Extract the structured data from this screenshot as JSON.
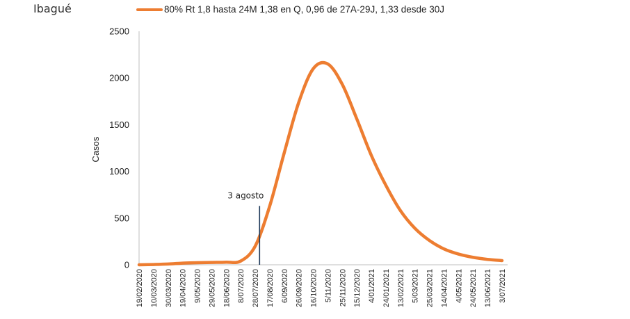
{
  "chart_data": {
    "type": "line",
    "title": "Ibagué",
    "xlabel": "",
    "ylabel": "Casos",
    "ylim": [
      0,
      2500
    ],
    "yticks": [
      0,
      500,
      1000,
      1500,
      2000,
      2500
    ],
    "grid": false,
    "legend_placement": "top",
    "categories": [
      "19/02/2020",
      "10/03/2020",
      "30/03/2020",
      "19/04/2020",
      "9/05/2020",
      "29/05/2020",
      "18/06/2020",
      "8/07/2020",
      "28/07/2020",
      "17/08/2020",
      "6/09/2020",
      "26/09/2020",
      "16/10/2020",
      "5/11/2020",
      "25/11/2020",
      "15/12/2020",
      "4/01/2021",
      "24/01/2021",
      "13/02/2021",
      "5/03/2021",
      "25/03/2021",
      "14/04/2021",
      "4/05/2021",
      "24/05/2021",
      "13/06/2021",
      "3/07/2021"
    ],
    "series": [
      {
        "name": "80% Rt 1,8 hasta 24M 1,38 en Q, 0,96 de 27A-29J, 1,33 desde 30J",
        "color": "#ED7D31",
        "values": [
          0,
          3,
          8,
          18,
          22,
          25,
          28,
          40,
          200,
          630,
          1200,
          1740,
          2100,
          2150,
          1930,
          1560,
          1170,
          850,
          580,
          390,
          260,
          170,
          115,
          80,
          58,
          45
        ]
      }
    ],
    "annotation": {
      "label": "3 agosto",
      "x_category": "28/07/2020",
      "x_offset_days": 6,
      "y_top": 630,
      "color": "#1F3A5A"
    }
  }
}
